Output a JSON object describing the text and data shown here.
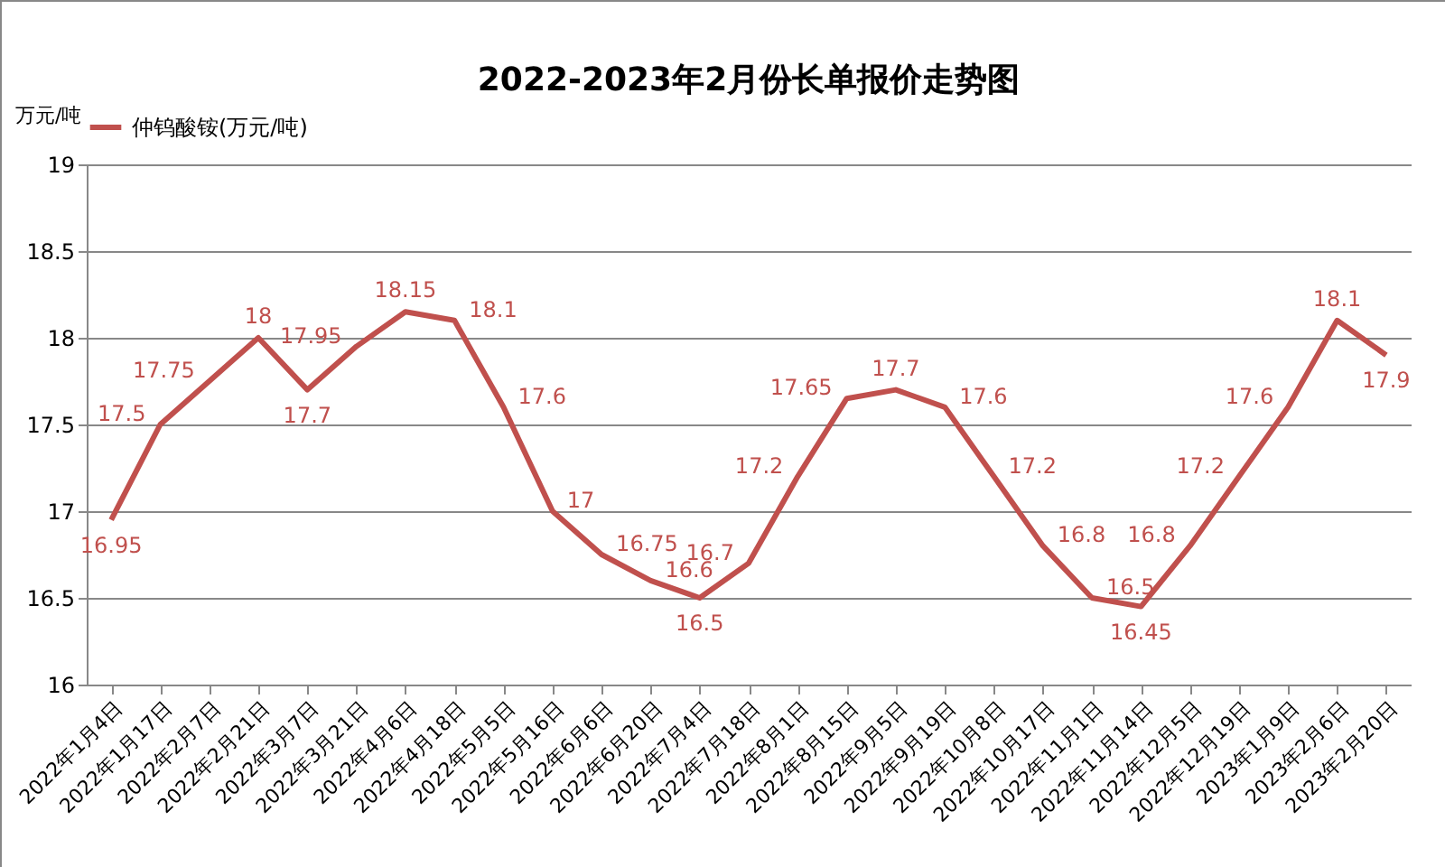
{
  "chart_data": {
    "type": "line",
    "title": "2022-2023年2月份长单报价走势图",
    "ylabel": "万元/吨",
    "categories": [
      "2022年1月4日",
      "2022年1月17日",
      "2022年2月7日",
      "2022年2月21日",
      "2022年3月7日",
      "2022年3月21日",
      "2022年4月6日",
      "2022年4月18日",
      "2022年5月5日",
      "2022年5月16日",
      "2022年6月6日",
      "2022年6月20日",
      "2022年7月4日",
      "2022年7月18日",
      "2022年8月1日",
      "2022年8月15日",
      "2022年9月5日",
      "2022年9月19日",
      "2022年10月8日",
      "2022年10月17日",
      "2022年11月1日",
      "2022年11月14日",
      "2022年12月5日",
      "2022年12月19日",
      "2023年1月9日",
      "2023年2月6日",
      "2023年2月20日"
    ],
    "series": [
      {
        "name": "仲钨酸铵(万元/吨)",
        "color": "#c0504d",
        "values": [
          16.95,
          17.5,
          17.75,
          18,
          17.7,
          17.95,
          18.15,
          18.1,
          17.6,
          17,
          16.75,
          16.6,
          16.5,
          16.7,
          17.2,
          17.65,
          17.7,
          17.6,
          17.2,
          16.8,
          16.5,
          16.45,
          16.8,
          17.2,
          17.6,
          18.1,
          17.9
        ]
      }
    ],
    "ylim": [
      16,
      19
    ],
    "yticks": [
      16,
      16.5,
      17,
      17.5,
      18,
      18.5,
      19
    ],
    "grid": "y",
    "legend": "top",
    "data_labels": true,
    "marker": "none",
    "line_style": "solid"
  }
}
